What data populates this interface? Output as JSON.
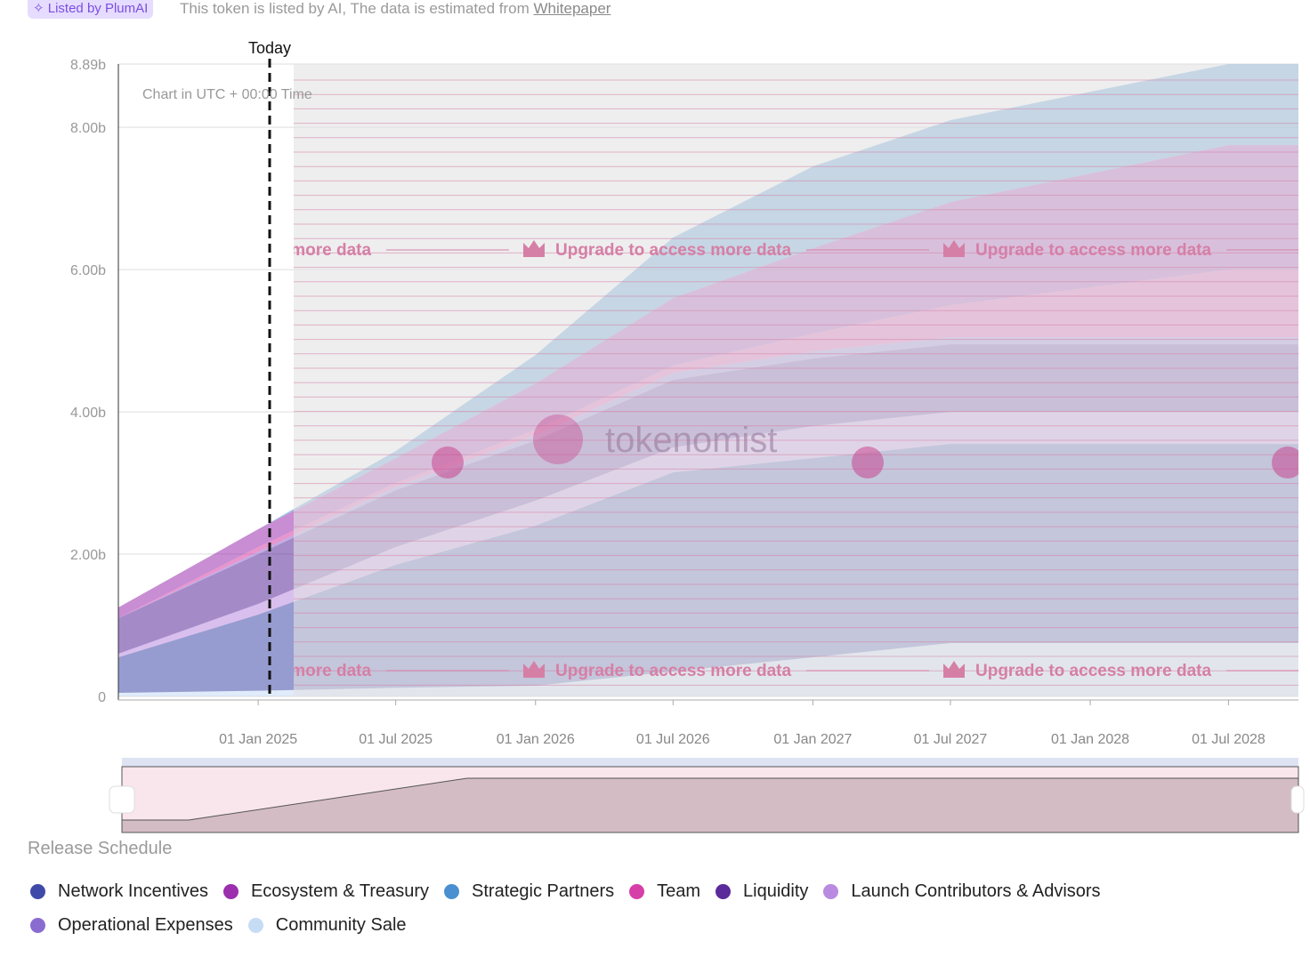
{
  "header": {
    "badge": "Listed by PlumAI",
    "note": "This token is listed by AI, The data is estimated from",
    "link": "Whitepaper"
  },
  "chart_data": {
    "type": "stacked-area",
    "today_label": "Today",
    "time_note": "Chart in UTC + 00:00 Time",
    "paywall_text": "Upgrade to access more data",
    "watermark": "tokenomist",
    "section_title": "Release Schedule",
    "x": [
      "01 Jul 2024",
      "01 Jan 2025",
      "01 Jul 2025",
      "01 Jan 2026",
      "01 Jul 2026",
      "01 Jan 2027",
      "01 Jul 2027",
      "01 Jan 2028",
      "01 Jul 2028",
      "01 Oct 2028"
    ],
    "xlim": [
      "01 Jul 2024",
      "01 Oct 2028"
    ],
    "xticks": [
      "01 Jan 2025",
      "01 Jul 2025",
      "01 Jan 2026",
      "01 Jul 2026",
      "01 Jan 2027",
      "01 Jul 2027",
      "01 Jan 2028",
      "01 Jul 2028"
    ],
    "ylim": [
      0,
      8.89
    ],
    "yticks": [
      0,
      {
        "value": 2,
        "label": "2.00b"
      },
      {
        "value": 4,
        "label": "4.00b"
      },
      {
        "value": 6,
        "label": "6.00b"
      },
      {
        "value": 8,
        "label": "8.00b"
      },
      {
        "value": 8.89,
        "label": "8.89b"
      }
    ],
    "grid": true,
    "series": [
      {
        "name": "Community Sale",
        "color": "#c6dcf5",
        "values": [
          0.05,
          0.08,
          0.12,
          0.15,
          0.35,
          0.55,
          0.75,
          0.75,
          0.75,
          0.75
        ]
      },
      {
        "name": "Network Incentives",
        "color": "#3f4aa8",
        "values": [
          0.5,
          1.07,
          1.73,
          2.25,
          2.8,
          2.8,
          2.8,
          2.8,
          2.8,
          2.8
        ]
      },
      {
        "name": "Launch Contributors & Advisors",
        "color": "#b98be0",
        "values": [
          0.05,
          0.15,
          0.25,
          0.35,
          0.35,
          0.45,
          0.45,
          0.45,
          0.45,
          0.45
        ]
      },
      {
        "name": "Liquidity",
        "color": "#5b2a9b",
        "values": [
          0.5,
          0.7,
          0.8,
          0.85,
          0.95,
          0.95,
          0.95,
          0.95,
          0.95,
          0.95
        ]
      },
      {
        "name": "Operational Expenses",
        "color": "#8a6cd0",
        "values": [
          0,
          0.03,
          0.05,
          0.07,
          0.1,
          0.1,
          0.1,
          0.1,
          0.1,
          0.1
        ]
      },
      {
        "name": "Team",
        "color": "#d63fa8",
        "values": [
          0,
          0.07,
          0.05,
          0.08,
          0.1,
          0.25,
          0.45,
          0.7,
          0.95,
          0.95
        ]
      },
      {
        "name": "Ecosystem & Treasury",
        "color": "#9b2fae",
        "values": [
          0.15,
          0.25,
          0.35,
          0.65,
          0.95,
          1.2,
          1.45,
          1.6,
          1.75,
          1.75
        ]
      },
      {
        "name": "Strategic Partners",
        "color": "#4a90d0",
        "values": [
          0,
          0,
          0.1,
          0.4,
          0.85,
          1.15,
          1.15,
          1.15,
          1.14,
          1.14
        ]
      }
    ],
    "legend_order": [
      1,
      6,
      7,
      5,
      3,
      2,
      4,
      0
    ]
  }
}
